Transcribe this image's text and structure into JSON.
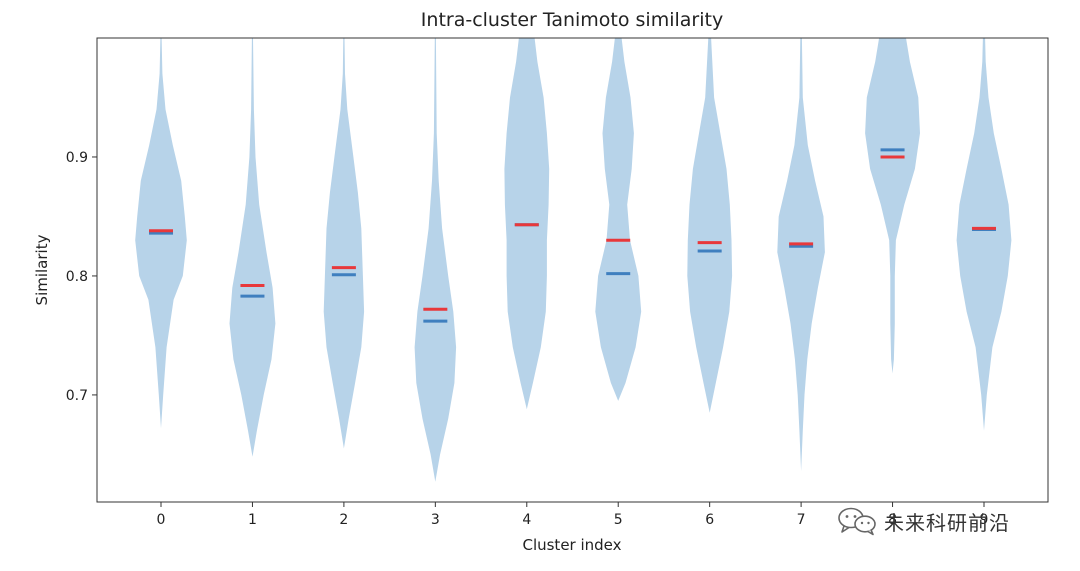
{
  "chart_data": {
    "type": "violin",
    "title": "Intra-cluster Tanimoto similarity",
    "xlabel": "Cluster index",
    "ylabel": "Similarity",
    "xlim": [
      -0.7,
      9.7
    ],
    "ylim": [
      0.61,
      1.0
    ],
    "yticks": [
      0.7,
      0.8,
      0.9
    ],
    "ytick_labels": [
      "0.7",
      "0.8",
      "0.9"
    ],
    "categories": [
      "0",
      "1",
      "2",
      "3",
      "4",
      "5",
      "6",
      "7",
      "8",
      "9"
    ],
    "colors": {
      "body": "#b7d3e9",
      "mean": "#e8383b",
      "median": "#3f7fbf",
      "frame": "#333333"
    },
    "violins": [
      {
        "min": 0.672,
        "max": 1.0,
        "mean": 0.838,
        "median": 0.836,
        "profile": [
          [
            0.672,
            0.0
          ],
          [
            0.7,
            0.08
          ],
          [
            0.74,
            0.2
          ],
          [
            0.78,
            0.45
          ],
          [
            0.8,
            0.78
          ],
          [
            0.83,
            0.92
          ],
          [
            0.85,
            0.85
          ],
          [
            0.88,
            0.72
          ],
          [
            0.91,
            0.42
          ],
          [
            0.94,
            0.16
          ],
          [
            0.97,
            0.05
          ],
          [
            1.0,
            0.02
          ]
        ]
      },
      {
        "min": 0.648,
        "max": 1.0,
        "mean": 0.792,
        "median": 0.783,
        "profile": [
          [
            0.648,
            0.0
          ],
          [
            0.67,
            0.16
          ],
          [
            0.7,
            0.4
          ],
          [
            0.73,
            0.68
          ],
          [
            0.76,
            0.82
          ],
          [
            0.79,
            0.72
          ],
          [
            0.82,
            0.5
          ],
          [
            0.86,
            0.24
          ],
          [
            0.9,
            0.11
          ],
          [
            0.94,
            0.05
          ],
          [
            1.0,
            0.02
          ]
        ]
      },
      {
        "min": 0.655,
        "max": 1.0,
        "mean": 0.807,
        "median": 0.801,
        "profile": [
          [
            0.655,
            0.0
          ],
          [
            0.68,
            0.17
          ],
          [
            0.71,
            0.4
          ],
          [
            0.74,
            0.62
          ],
          [
            0.77,
            0.72
          ],
          [
            0.8,
            0.68
          ],
          [
            0.84,
            0.62
          ],
          [
            0.87,
            0.5
          ],
          [
            0.9,
            0.34
          ],
          [
            0.94,
            0.12
          ],
          [
            0.97,
            0.04
          ],
          [
            1.0,
            0.02
          ]
        ]
      },
      {
        "min": 0.627,
        "max": 1.0,
        "mean": 0.772,
        "median": 0.762,
        "profile": [
          [
            0.627,
            0.0
          ],
          [
            0.65,
            0.17
          ],
          [
            0.68,
            0.46
          ],
          [
            0.71,
            0.68
          ],
          [
            0.74,
            0.74
          ],
          [
            0.77,
            0.64
          ],
          [
            0.8,
            0.46
          ],
          [
            0.84,
            0.24
          ],
          [
            0.88,
            0.12
          ],
          [
            0.92,
            0.05
          ],
          [
            1.0,
            0.02
          ]
        ]
      },
      {
        "min": 0.688,
        "max": 1.0,
        "mean": 0.843,
        "median": 0.843,
        "profile": [
          [
            0.688,
            0.0
          ],
          [
            0.71,
            0.22
          ],
          [
            0.74,
            0.5
          ],
          [
            0.77,
            0.68
          ],
          [
            0.8,
            0.72
          ],
          [
            0.83,
            0.72
          ],
          [
            0.86,
            0.78
          ],
          [
            0.89,
            0.8
          ],
          [
            0.92,
            0.72
          ],
          [
            0.95,
            0.6
          ],
          [
            0.98,
            0.38
          ],
          [
            1.0,
            0.28
          ]
        ]
      },
      {
        "min": 0.695,
        "max": 1.0,
        "mean": 0.83,
        "median": 0.802,
        "profile": [
          [
            0.695,
            0.0
          ],
          [
            0.71,
            0.26
          ],
          [
            0.74,
            0.62
          ],
          [
            0.77,
            0.82
          ],
          [
            0.8,
            0.72
          ],
          [
            0.83,
            0.42
          ],
          [
            0.86,
            0.32
          ],
          [
            0.89,
            0.48
          ],
          [
            0.92,
            0.56
          ],
          [
            0.95,
            0.44
          ],
          [
            0.98,
            0.22
          ],
          [
            1.0,
            0.12
          ]
        ]
      },
      {
        "min": 0.685,
        "max": 1.0,
        "mean": 0.828,
        "median": 0.821,
        "profile": [
          [
            0.685,
            0.0
          ],
          [
            0.71,
            0.22
          ],
          [
            0.74,
            0.48
          ],
          [
            0.77,
            0.7
          ],
          [
            0.8,
            0.8
          ],
          [
            0.83,
            0.78
          ],
          [
            0.86,
            0.72
          ],
          [
            0.89,
            0.6
          ],
          [
            0.92,
            0.38
          ],
          [
            0.95,
            0.16
          ],
          [
            1.0,
            0.05
          ]
        ]
      },
      {
        "min": 0.636,
        "max": 1.0,
        "mean": 0.827,
        "median": 0.825,
        "profile": [
          [
            0.636,
            0.0
          ],
          [
            0.67,
            0.06
          ],
          [
            0.7,
            0.12
          ],
          [
            0.73,
            0.22
          ],
          [
            0.76,
            0.38
          ],
          [
            0.79,
            0.6
          ],
          [
            0.82,
            0.85
          ],
          [
            0.85,
            0.8
          ],
          [
            0.88,
            0.5
          ],
          [
            0.91,
            0.24
          ],
          [
            0.95,
            0.06
          ],
          [
            1.0,
            0.03
          ]
        ]
      },
      {
        "min": 0.718,
        "max": 1.0,
        "mean": 0.9,
        "median": 0.906,
        "profile": [
          [
            0.718,
            0.0
          ],
          [
            0.73,
            0.05
          ],
          [
            0.76,
            0.08
          ],
          [
            0.8,
            0.08
          ],
          [
            0.83,
            0.12
          ],
          [
            0.86,
            0.42
          ],
          [
            0.89,
            0.8
          ],
          [
            0.92,
            0.98
          ],
          [
            0.95,
            0.92
          ],
          [
            0.98,
            0.62
          ],
          [
            1.0,
            0.48
          ]
        ]
      },
      {
        "min": 0.67,
        "max": 1.0,
        "mean": 0.84,
        "median": 0.839,
        "profile": [
          [
            0.67,
            0.0
          ],
          [
            0.7,
            0.1
          ],
          [
            0.74,
            0.3
          ],
          [
            0.77,
            0.62
          ],
          [
            0.8,
            0.85
          ],
          [
            0.83,
            0.98
          ],
          [
            0.86,
            0.88
          ],
          [
            0.89,
            0.62
          ],
          [
            0.92,
            0.35
          ],
          [
            0.95,
            0.16
          ],
          [
            0.98,
            0.06
          ],
          [
            1.0,
            0.04
          ]
        ]
      }
    ]
  },
  "watermark": {
    "text": "未来科研前沿",
    "icon": "wechat-icon"
  }
}
